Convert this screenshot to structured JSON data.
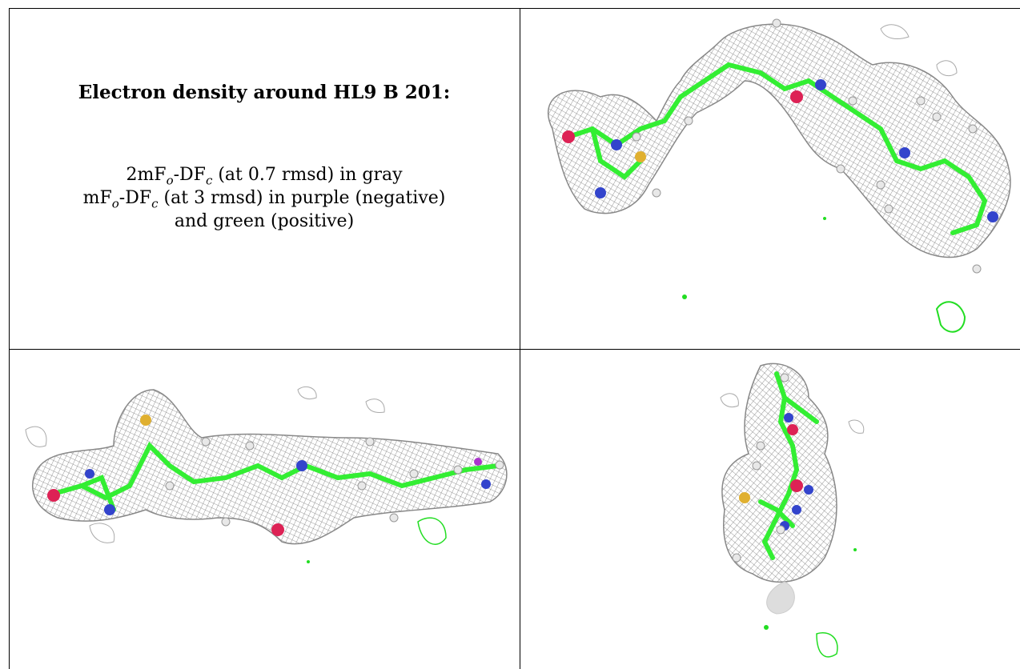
{
  "caption": {
    "title": "Electron density around HL9 B 201:",
    "line1": {
      "pre": "2mF",
      "sub1": "o",
      "mid": "-DF",
      "sub2": "c",
      "post": " (at 0.7 rmsd) in gray"
    },
    "line2": {
      "pre": "mF",
      "sub1": "o",
      "mid": "-DF",
      "sub2": "c",
      "post": " (at 3 rmsd) in purple (negative)"
    },
    "line3": "and green (positive)"
  },
  "colors": {
    "mesh": "#8a8a8a",
    "carbon": "#33ee33",
    "nitrogen": "#3344cc",
    "oxygen": "#dd2255",
    "sulfur": "#e0b030",
    "hydrogen": "#e8e8e8",
    "positive_density": "#22dd22"
  },
  "panels": [
    {
      "view": "view-top-right",
      "icon": "electron-density-view-1"
    },
    {
      "view": "view-bottom-left",
      "icon": "electron-density-view-2"
    },
    {
      "view": "view-bottom-right",
      "icon": "electron-density-view-3"
    }
  ]
}
